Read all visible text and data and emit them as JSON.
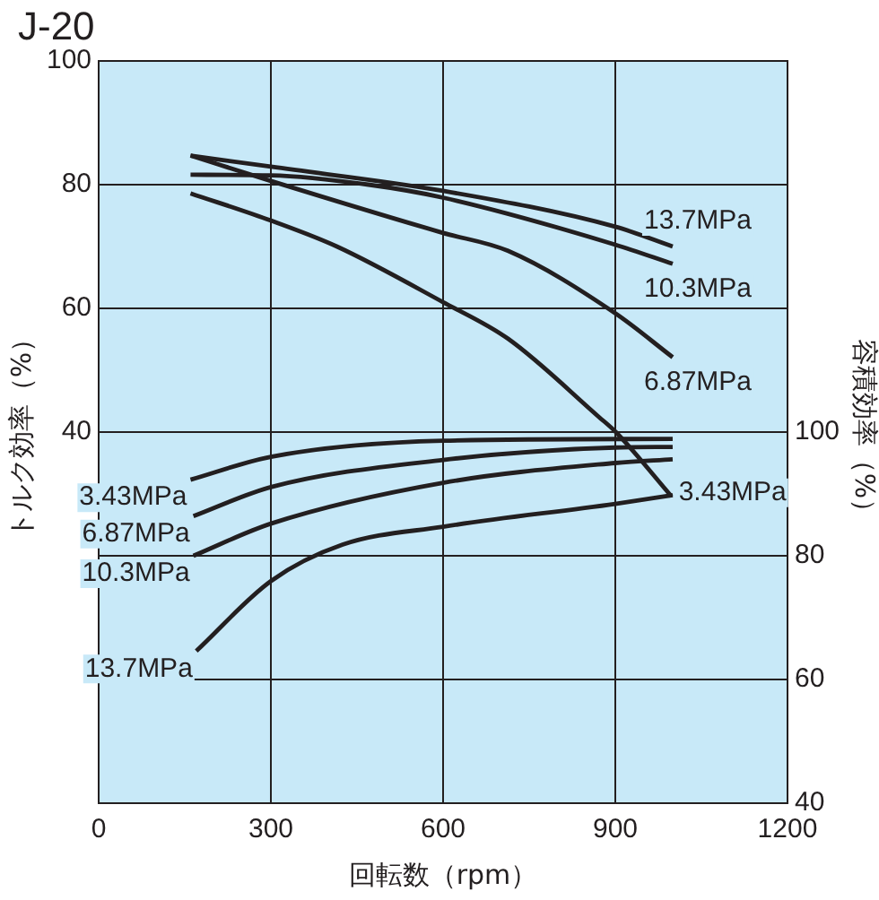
{
  "chart_data": {
    "type": "line",
    "title": "J-20",
    "xlabel": "回転数（rpm）",
    "ylabel": "トルク効率（%）",
    "y2label": "容積効率（%）",
    "xlim": [
      0,
      1200
    ],
    "xticks": [
      0,
      300,
      600,
      900,
      1200
    ],
    "ylim": [
      -20,
      100
    ],
    "yticks": [
      40,
      60,
      80,
      100
    ],
    "y2lim": [
      40,
      160
    ],
    "y2ticks": [
      40,
      60,
      80,
      100
    ],
    "grid": true,
    "legend": false,
    "marker": "none",
    "line_style": "solid",
    "series": [
      {
        "name": "13.7MPa",
        "color": "#231f20",
        "x": [
          160,
          300,
          600,
          900,
          1000
        ],
        "values": [
          84.7,
          82.9,
          79.0,
          73.2,
          70.0
        ]
      },
      {
        "name": "10.3MPa",
        "color": "#231f20",
        "x": [
          160,
          300,
          470,
          600,
          900,
          1000
        ],
        "values": [
          81.6,
          81.5,
          80.0,
          77.9,
          70.3,
          67.2
        ]
      },
      {
        "name": "6.87MPa",
        "color": "#231f20",
        "x": [
          160,
          300,
          600,
          713,
          900,
          1000
        ],
        "values": [
          84.7,
          80.6,
          72.2,
          69.3,
          59.2,
          52.1
        ]
      },
      {
        "name": "3.43MPa",
        "color": "#231f20",
        "x": [
          160,
          300,
          415,
          600,
          713,
          872,
          901,
          998
        ],
        "values": [
          78.6,
          74.2,
          70.0,
          61.0,
          55.1,
          42.4,
          40.0,
          29.6
        ]
      },
      {
        "name": "3.43MPa",
        "color": "#231f20",
        "axis": "y2",
        "x": [
          160,
          300,
          600,
          1000
        ],
        "values": [
          92.3,
          96.0,
          98.6,
          98.9
        ]
      },
      {
        "name": "6.87MPa",
        "color": "#231f20",
        "axis": "y2",
        "x": [
          165,
          300,
          600,
          900,
          1000
        ],
        "values": [
          86.4,
          91.1,
          95.5,
          97.5,
          97.6
        ]
      },
      {
        "name": "10.3MPa",
        "color": "#231f20",
        "axis": "y2",
        "x": [
          165,
          300,
          600,
          900,
          1000
        ],
        "values": [
          80.0,
          85.2,
          91.8,
          95.0,
          95.6
        ]
      },
      {
        "name": "13.7MPa",
        "color": "#231f20",
        "axis": "y2",
        "x": [
          170,
          300,
          425,
          600,
          900,
          1000
        ],
        "values": [
          64.6,
          75.9,
          81.8,
          84.7,
          88.4,
          89.8
        ]
      }
    ]
  }
}
